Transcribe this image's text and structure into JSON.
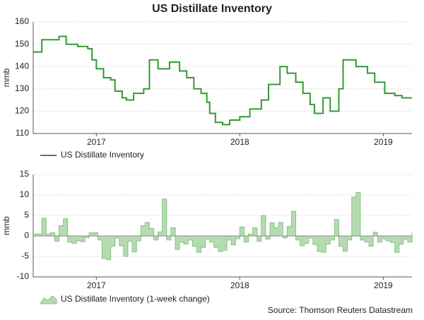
{
  "chart_data": [
    {
      "type": "line",
      "title": "US Distillate Inventory",
      "y_label": "mmb",
      "line_shape": "step",
      "grid": true,
      "xlim": [
        2016.56,
        2019.2
      ],
      "xticks": [
        2017,
        2018,
        2019
      ],
      "ylim": [
        110,
        160
      ],
      "yticks": [
        110,
        120,
        130,
        140,
        150,
        160
      ],
      "series": [
        {
          "name": "US Distillate Inventory",
          "color": "#339933",
          "x": [
            2016.56,
            2016.62,
            2016.74,
            2016.79,
            2016.87,
            2016.94,
            2016.97,
            2017.0,
            2017.05,
            2017.1,
            2017.13,
            2017.18,
            2017.21,
            2017.26,
            2017.33,
            2017.37,
            2017.43,
            2017.51,
            2017.58,
            2017.63,
            2017.68,
            2017.73,
            2017.77,
            2017.79,
            2017.83,
            2017.88,
            2017.93,
            2018.0,
            2018.07,
            2018.15,
            2018.2,
            2018.28,
            2018.33,
            2018.39,
            2018.44,
            2018.49,
            2018.52,
            2018.58,
            2018.63,
            2018.69,
            2018.72,
            2018.81,
            2018.89,
            2018.94,
            2019.01,
            2019.08,
            2019.13,
            2019.2
          ],
          "values": [
            146.5,
            152,
            153.5,
            150,
            149,
            148,
            143,
            139,
            135,
            134,
            129,
            126,
            125,
            128,
            130,
            143,
            139,
            142,
            138,
            135,
            130,
            128,
            124,
            119,
            115,
            114,
            116,
            117.5,
            121,
            125,
            132,
            140,
            137,
            133,
            128,
            123,
            119,
            126,
            120,
            130,
            143,
            140,
            137,
            133,
            128,
            127,
            126,
            126
          ]
        }
      ]
    },
    {
      "type": "area",
      "y_label": "mmb",
      "line_shape": "step",
      "grid": true,
      "source": "Source: Thomson Reuters Datastream",
      "xlim": [
        2016.56,
        2019.2
      ],
      "xticks": [
        2017,
        2018,
        2019
      ],
      "ylim": [
        -10,
        15
      ],
      "yticks": [
        -10,
        -5,
        0,
        5,
        10,
        15
      ],
      "series": [
        {
          "name": "US Distillate Inventory (1-week change)",
          "color": "#b5dbb1",
          "edge_color": "#86c184",
          "x": [
            2016.56,
            2016.59,
            2016.62,
            2016.65,
            2016.68,
            2016.71,
            2016.74,
            2016.77,
            2016.8,
            2016.83,
            2016.86,
            2016.89,
            2016.92,
            2016.95,
            2016.98,
            2017.01,
            2017.04,
            2017.07,
            2017.1,
            2017.13,
            2017.16,
            2017.19,
            2017.22,
            2017.25,
            2017.28,
            2017.31,
            2017.34,
            2017.37,
            2017.4,
            2017.43,
            2017.46,
            2017.49,
            2017.52,
            2017.55,
            2017.58,
            2017.61,
            2017.64,
            2017.67,
            2017.7,
            2017.73,
            2017.76,
            2017.79,
            2017.82,
            2017.85,
            2017.88,
            2017.91,
            2017.94,
            2017.97,
            2018.0,
            2018.03,
            2018.06,
            2018.09,
            2018.12,
            2018.15,
            2018.18,
            2018.21,
            2018.24,
            2018.27,
            2018.3,
            2018.33,
            2018.36,
            2018.39,
            2018.42,
            2018.45,
            2018.48,
            2018.51,
            2018.54,
            2018.57,
            2018.6,
            2018.63,
            2018.66,
            2018.69,
            2018.72,
            2018.75,
            2018.78,
            2018.81,
            2018.84,
            2018.87,
            2018.9,
            2018.93,
            2018.96,
            2018.99,
            2019.02,
            2019.05,
            2019.08,
            2019.11,
            2019.14,
            2019.17,
            2019.2
          ],
          "values": [
            0.5,
            0.5,
            4.3,
            0.5,
            0.8,
            -1.3,
            2.5,
            4.2,
            -1.5,
            -1.8,
            -1.2,
            -1.4,
            -0.4,
            0.8,
            0.8,
            -1.0,
            -5.5,
            -5.8,
            -2.5,
            -0.5,
            -2.4,
            -5.0,
            -1.3,
            -3.9,
            -1.2,
            2.5,
            3.3,
            1.8,
            -1.0,
            1.0,
            9.0,
            -1.0,
            2.0,
            -3.3,
            -1.5,
            -2.0,
            -1.0,
            -2.5,
            -4.0,
            -2.8,
            -0.8,
            -1.5,
            -2.8,
            -3.8,
            -3.5,
            -1.0,
            -2.2,
            -0.7,
            2.2,
            -1.5,
            0.5,
            2.0,
            -1.3,
            5.0,
            -0.8,
            3.2,
            2.0,
            3.3,
            -0.5,
            2.3,
            6.0,
            -1.0,
            -2.4,
            -1.8,
            -0.5,
            -2.1,
            -3.8,
            -4.0,
            -2.0,
            -1.0,
            4.0,
            -2.5,
            -3.7,
            -1.0,
            9.5,
            10.6,
            -1.0,
            -1.5,
            -2.5,
            0.9,
            -1.5,
            -0.7,
            -1.2,
            -1.6,
            -4.0,
            -2.0,
            -0.8,
            -1.5,
            0.8
          ]
        }
      ]
    }
  ]
}
